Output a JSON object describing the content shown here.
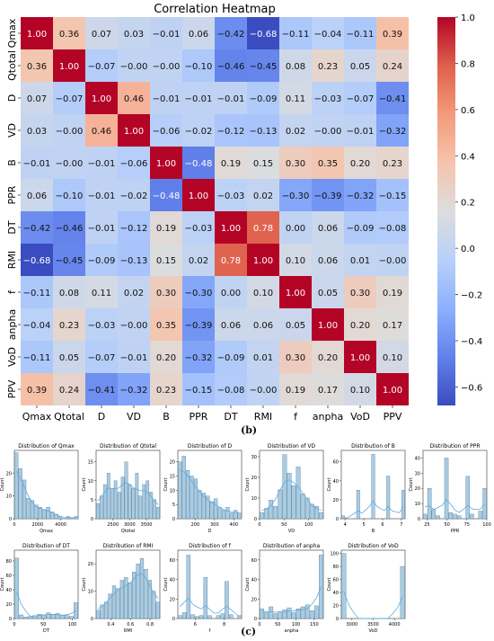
{
  "chart_data": [
    {
      "type": "heatmap",
      "title": "Correlation Heatmap",
      "labels": [
        "Qmax",
        "Qtotal",
        "D",
        "VD",
        "B",
        "PPR",
        "DT",
        "RMI",
        "f",
        "anpha",
        "VoD",
        "PPV"
      ],
      "matrix": [
        [
          1.0,
          0.36,
          0.07,
          0.03,
          -0.01,
          0.06,
          -0.42,
          -0.68,
          -0.11,
          -0.04,
          -0.11,
          0.39
        ],
        [
          0.36,
          1.0,
          -0.07,
          -0.0,
          -0.0,
          -0.1,
          -0.46,
          -0.45,
          0.08,
          0.23,
          0.05,
          0.24
        ],
        [
          0.07,
          -0.07,
          1.0,
          0.46,
          -0.01,
          -0.01,
          -0.01,
          -0.09,
          0.11,
          -0.03,
          -0.07,
          -0.41
        ],
        [
          0.03,
          -0.0,
          0.46,
          1.0,
          -0.06,
          -0.02,
          -0.12,
          -0.13,
          0.02,
          -0.0,
          -0.01,
          -0.32
        ],
        [
          -0.01,
          -0.0,
          -0.01,
          -0.06,
          1.0,
          -0.48,
          0.19,
          0.15,
          0.3,
          0.35,
          0.2,
          0.23
        ],
        [
          0.06,
          -0.1,
          -0.01,
          -0.02,
          -0.48,
          1.0,
          -0.03,
          0.02,
          -0.3,
          -0.39,
          -0.32,
          -0.15
        ],
        [
          -0.42,
          -0.46,
          -0.01,
          -0.12,
          0.19,
          -0.03,
          1.0,
          0.78,
          0.0,
          0.06,
          -0.09,
          -0.08
        ],
        [
          -0.68,
          -0.45,
          -0.09,
          -0.13,
          0.15,
          0.02,
          0.78,
          1.0,
          0.1,
          0.06,
          0.01,
          -0.0
        ],
        [
          -0.11,
          0.08,
          0.11,
          0.02,
          0.3,
          -0.3,
          0.0,
          0.1,
          1.0,
          0.05,
          0.3,
          0.19
        ],
        [
          -0.04,
          0.23,
          -0.03,
          -0.0,
          0.35,
          -0.39,
          0.06,
          0.06,
          0.05,
          1.0,
          0.2,
          0.17
        ],
        [
          -0.11,
          0.05,
          -0.07,
          -0.01,
          0.2,
          -0.32,
          -0.09,
          0.01,
          0.3,
          0.2,
          1.0,
          0.1
        ],
        [
          0.39,
          0.24,
          -0.41,
          -0.32,
          0.23,
          -0.15,
          -0.08,
          -0.0,
          0.19,
          0.17,
          0.1,
          1.0
        ]
      ],
      "colorbar": {
        "ticks": [
          "1.0",
          "0.8",
          "0.6",
          "0.4",
          "0.2",
          "0.0",
          "−0.2",
          "−0.4",
          "−0.6"
        ],
        "range": [
          -0.68,
          1.0
        ],
        "colormap": "coolwarm"
      },
      "panel_label": "(b)"
    },
    {
      "type": "histogram_grid",
      "panel_label": "(c)",
      "ylabel": "Count",
      "bar_color": "#a9cce3",
      "kde_color": "#5dade2",
      "panels": [
        {
          "title": "Distribution of Qmax",
          "xlabel": "Qmax",
          "xticks": [
            "0",
            "2000",
            "4000"
          ],
          "yticks": [
            "0",
            "10",
            "20"
          ],
          "xrange": [
            0,
            5500
          ],
          "ymax": 30,
          "counts": [
            29,
            22,
            17,
            9,
            8,
            6,
            5,
            4,
            5,
            3,
            2,
            1,
            0,
            1,
            0,
            1
          ]
        },
        {
          "title": "Distribution of Qtotal",
          "xlabel": "Qtotal",
          "xticks": [
            "2500",
            "3000",
            "3500"
          ],
          "yticks": [
            "0",
            "5",
            "10",
            "15"
          ],
          "xrange": [
            2000,
            3900
          ],
          "ymax": 18,
          "counts": [
            4,
            6,
            9,
            12,
            8,
            10,
            7,
            11,
            15,
            9,
            8,
            12,
            6,
            9,
            10,
            7,
            5,
            3
          ]
        },
        {
          "title": "Distribution of D",
          "xlabel": "D",
          "xticks": [
            "200",
            "300",
            "400"
          ],
          "yticks": [
            "0",
            "5",
            "10",
            "15",
            "20"
          ],
          "xrange": [
            110,
            440
          ],
          "ymax": 24,
          "counts": [
            20,
            22,
            17,
            15,
            14,
            10,
            9,
            8,
            6,
            7,
            4,
            3,
            4,
            2,
            3,
            2
          ]
        },
        {
          "title": "Distribution of VD",
          "xlabel": "VD",
          "xticks": [
            "0",
            "50",
            "100"
          ],
          "yticks": [
            "0",
            "10",
            "20",
            "30"
          ],
          "xrange": [
            0,
            130
          ],
          "ymax": 33,
          "counts": [
            3,
            5,
            9,
            6,
            14,
            31,
            22,
            16,
            25,
            12,
            10,
            7,
            6,
            3
          ]
        },
        {
          "title": "Distribution of B",
          "xlabel": "B",
          "xticks": [
            "4",
            "5",
            "6",
            "7"
          ],
          "yticks": [
            "0",
            "20",
            "40",
            "60"
          ],
          "xrange": [
            3.8,
            7.2
          ],
          "ymax": 72,
          "counts": [
            3,
            0,
            0,
            0,
            30,
            0,
            0,
            0,
            68,
            0,
            0,
            0,
            45,
            0,
            0,
            0,
            30
          ]
        },
        {
          "title": "Distribution of PPR",
          "xlabel": "PPR",
          "xticks": [
            "25",
            "50",
            "75",
            "100"
          ],
          "yticks": [
            "0",
            "10",
            "20",
            "30",
            "40"
          ],
          "xrange": [
            20,
            100
          ],
          "ymax": 45,
          "counts": [
            3,
            20,
            6,
            2,
            0,
            40,
            4,
            3,
            2,
            0,
            28,
            3,
            0,
            5,
            20
          ]
        },
        {
          "title": "Distribution of DT",
          "xlabel": "DT",
          "xticks": [
            "0",
            "50",
            "100"
          ],
          "yticks": [
            "0",
            "20",
            "40",
            "60",
            "80"
          ],
          "xrange": [
            0,
            110
          ],
          "ymax": 95,
          "counts": [
            84,
            5,
            2,
            3,
            4,
            6,
            5,
            8,
            6,
            7,
            5,
            4,
            3,
            22
          ]
        },
        {
          "title": "Distribution of RMI",
          "xlabel": "RMI",
          "xticks": [
            "0.4",
            "0.6",
            "0.8"
          ],
          "yticks": [
            "0",
            "10",
            "20"
          ],
          "xrange": [
            0.25,
            0.9
          ],
          "ymax": 25,
          "counts": [
            3,
            5,
            6,
            9,
            12,
            11,
            14,
            15,
            13,
            17,
            20,
            22,
            18,
            14,
            10,
            6
          ]
        },
        {
          "title": "Distribution of f",
          "xlabel": "f",
          "xticks": [
            "6",
            "8"
          ],
          "yticks": [
            "0",
            "20",
            "40",
            "60"
          ],
          "xrange": [
            4.8,
            9.2
          ],
          "ymax": 70,
          "counts": [
            3,
            6,
            65,
            4,
            2,
            3,
            42,
            3,
            0,
            3,
            5,
            38,
            4,
            0,
            3
          ]
        },
        {
          "title": "Distribution of anpha",
          "xlabel": "anpha",
          "xticks": [
            "0",
            "50",
            "100",
            "150"
          ],
          "yticks": [
            "0",
            "20",
            "40",
            "60"
          ],
          "xrange": [
            0,
            175
          ],
          "ymax": 70,
          "counts": [
            10,
            6,
            12,
            5,
            7,
            9,
            11,
            6,
            10,
            12,
            14,
            8,
            13,
            65
          ]
        },
        {
          "title": "Distribution of VoD",
          "xlabel": "VoD",
          "xticks": [
            "3000",
            "3500",
            "4000"
          ],
          "yticks": [
            "0",
            "20",
            "40",
            "60",
            "80",
            "100"
          ],
          "xrange": [
            2750,
            4250
          ],
          "ymax": 105,
          "counts": [
            100,
            0,
            0,
            0,
            0,
            0,
            0,
            0,
            0,
            0,
            0,
            0,
            80
          ]
        }
      ]
    }
  ]
}
